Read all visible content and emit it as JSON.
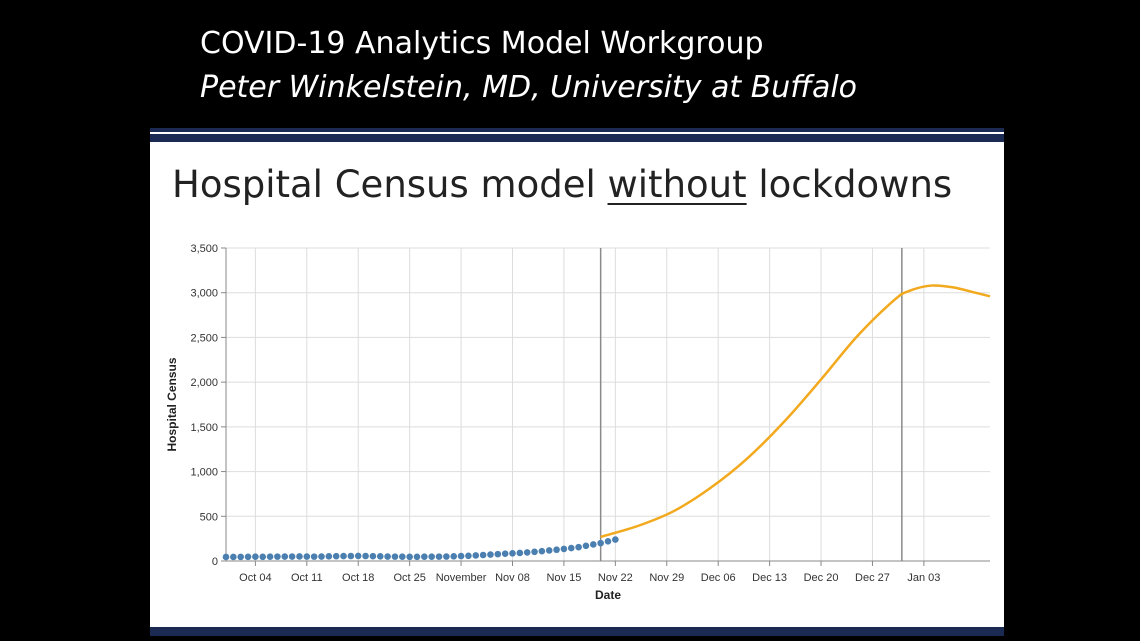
{
  "header": {
    "line1": "COVID-19 Analytics Model Workgroup",
    "line2": "Peter Winkelstein, MD, University at Buffalo"
  },
  "slide": {
    "title_before": "Hospital Census model ",
    "title_underlined": "without",
    "title_after": " lockdowns"
  },
  "colors": {
    "navy_rule": "#1b2a52",
    "observed_points": "#4a7fb0",
    "model_line": "#f2a91e",
    "gridline": "#dddddd"
  },
  "chart_data": {
    "type": "line",
    "xlabel": "Date",
    "ylabel": "Hospital Census",
    "ylim": [
      0,
      3500
    ],
    "y_ticks": [
      0,
      500,
      1000,
      1500,
      2000,
      2500,
      3000,
      3500
    ],
    "y_tick_labels": [
      "0",
      "500",
      "1,000",
      "1,500",
      "2,000",
      "2,500",
      "3,000",
      "3,500"
    ],
    "x_range": [
      "2020-09-30",
      "2021-01-12"
    ],
    "x_ticks": [
      "2020-10-04",
      "2020-10-11",
      "2020-10-18",
      "2020-10-25",
      "2020-11-01",
      "2020-11-08",
      "2020-11-15",
      "2020-11-22",
      "2020-11-29",
      "2020-12-06",
      "2020-12-13",
      "2020-12-20",
      "2020-12-27",
      "2021-01-03"
    ],
    "x_tick_labels": [
      "Oct 04",
      "Oct 11",
      "Oct 18",
      "Oct 25",
      "November",
      "Nov 08",
      "Nov 15",
      "Nov 22",
      "Nov 29",
      "Dec 06",
      "Dec 13",
      "Dec 20",
      "Dec 27",
      "Jan 03"
    ],
    "grid": true,
    "vertical_markers": [
      "2020-11-20",
      "2020-12-31"
    ],
    "series": [
      {
        "kind": "points",
        "color": "#4a7fb0",
        "x": [
          "2020-09-30",
          "2020-10-01",
          "2020-10-02",
          "2020-10-03",
          "2020-10-04",
          "2020-10-05",
          "2020-10-06",
          "2020-10-07",
          "2020-10-08",
          "2020-10-09",
          "2020-10-10",
          "2020-10-11",
          "2020-10-12",
          "2020-10-13",
          "2020-10-14",
          "2020-10-15",
          "2020-10-16",
          "2020-10-17",
          "2020-10-18",
          "2020-10-19",
          "2020-10-20",
          "2020-10-21",
          "2020-10-22",
          "2020-10-23",
          "2020-10-24",
          "2020-10-25",
          "2020-10-26",
          "2020-10-27",
          "2020-10-28",
          "2020-10-29",
          "2020-10-30",
          "2020-10-31",
          "2020-11-01",
          "2020-11-02",
          "2020-11-03",
          "2020-11-04",
          "2020-11-05",
          "2020-11-06",
          "2020-11-07",
          "2020-11-08",
          "2020-11-09",
          "2020-11-10",
          "2020-11-11",
          "2020-11-12",
          "2020-11-13",
          "2020-11-14",
          "2020-11-15",
          "2020-11-16",
          "2020-11-17",
          "2020-11-18",
          "2020-11-19",
          "2020-11-20",
          "2020-11-21",
          "2020-11-22"
        ],
        "y": [
          45,
          45,
          46,
          47,
          48,
          47,
          48,
          49,
          50,
          50,
          51,
          50,
          49,
          50,
          52,
          54,
          55,
          56,
          57,
          56,
          54,
          52,
          50,
          49,
          48,
          47,
          47,
          48,
          48,
          49,
          50,
          52,
          55,
          58,
          62,
          67,
          72,
          77,
          82,
          86,
          90,
          96,
          103,
          110,
          118,
          126,
          135,
          145,
          155,
          170,
          185,
          200,
          220,
          240
        ]
      },
      {
        "kind": "line",
        "color": "#f2a91e",
        "x": [
          "2020-11-20",
          "2020-11-25",
          "2020-11-30",
          "2020-12-05",
          "2020-12-10",
          "2020-12-15",
          "2020-12-20",
          "2020-12-25",
          "2020-12-30",
          "2021-01-01",
          "2021-01-04",
          "2021-01-07",
          "2021-01-10",
          "2021-01-12"
        ],
        "y": [
          270,
          390,
          560,
          820,
          1150,
          1560,
          2030,
          2520,
          2920,
          3020,
          3080,
          3060,
          3000,
          2960
        ]
      }
    ]
  }
}
